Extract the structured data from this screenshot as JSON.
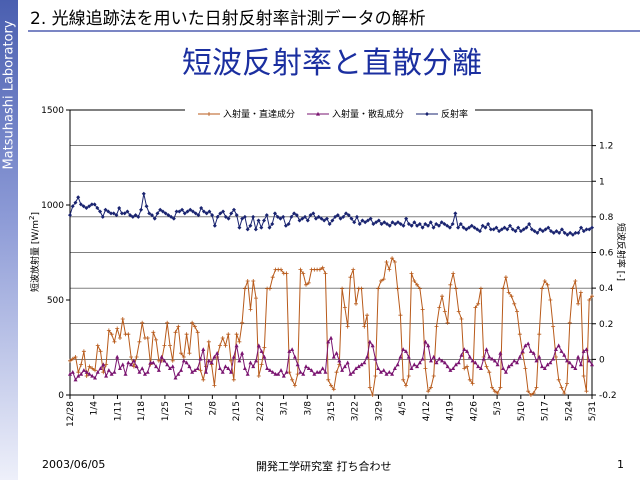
{
  "slide": {
    "sidebar_text": "Matsuhashi Laboratory",
    "heading": "2. 光線追跡法を用いた日射反射率計測データの解析",
    "title": "短波反射率と直散分離",
    "footer_date": "2003/06/05",
    "footer_org": "開発工学研究室 打ち合わせ",
    "page_number": "1"
  },
  "chart_data": {
    "type": "line",
    "y_left_label": "短波放射量 [W/m",
    "y_left_label_sup": "2",
    "y_left_label_end": "]",
    "y_right_label": "短波反射率 [-]",
    "y_left_range": [
      0,
      1500
    ],
    "y_left_ticks": [
      "0",
      "500",
      "1000",
      "1500"
    ],
    "y_right_range": [
      -0.2,
      1.4
    ],
    "y_right_ticks": [
      "-0.2",
      "0",
      "0.2",
      "0.4",
      "0.6",
      "0.8",
      "1",
      "1.2"
    ],
    "grid": true,
    "legend_position": "top",
    "x_range": [
      "2002-12-28",
      "2003-05-31"
    ],
    "x_ticks": [
      "12/28",
      "1/4",
      "1/11",
      "1/18",
      "1/25",
      "2/1",
      "2/8",
      "2/15",
      "2/22",
      "3/1",
      "3/8",
      "3/15",
      "3/22",
      "3/29",
      "4/5",
      "4/12",
      "4/19",
      "4/26",
      "5/3",
      "5/10",
      "5/17",
      "5/24",
      "5/31"
    ],
    "series": [
      {
        "name": "入射量・直達成分",
        "axis": "left",
        "color": "#b85a1a",
        "marker": "tick",
        "y": [
          180,
          190,
          200,
          120,
          160,
          230,
          100,
          150,
          140,
          130,
          260,
          230,
          120,
          160,
          340,
          320,
          280,
          350,
          300,
          400,
          320,
          320,
          200,
          150,
          200,
          280,
          380,
          300,
          300,
          160,
          330,
          290,
          180,
          180,
          260,
          380,
          260,
          180,
          330,
          360,
          220,
          200,
          320,
          220,
          380,
          360,
          330,
          130,
          80,
          150,
          280,
          160,
          50,
          200,
          260,
          300,
          260,
          320,
          180,
          80,
          320,
          280,
          380,
          560,
          600,
          450,
          600,
          510,
          100,
          160,
          250,
          560,
          560,
          620,
          660,
          660,
          660,
          640,
          640,
          120,
          80,
          50,
          110,
          660,
          640,
          580,
          590,
          660,
          660,
          660,
          660,
          670,
          640,
          80,
          50,
          30,
          120,
          160,
          560,
          460,
          360,
          620,
          660,
          480,
          560,
          560,
          360,
          420,
          40,
          0,
          100,
          560,
          600,
          610,
          700,
          660,
          720,
          700,
          560,
          420,
          80,
          50,
          100,
          640,
          600,
          580,
          560,
          450,
          140,
          20,
          40,
          100,
          360,
          460,
          520,
          440,
          380,
          580,
          640,
          560,
          440,
          400,
          140,
          150,
          80,
          60,
          460,
          480,
          560,
          200,
          150,
          120,
          40,
          20,
          10,
          40,
          560,
          620,
          540,
          520,
          480,
          440,
          320,
          220,
          140,
          20,
          0,
          10,
          40,
          320,
          560,
          600,
          580,
          500,
          360,
          200,
          80,
          40,
          10,
          60,
          380,
          560,
          600,
          480,
          540,
          100,
          20,
          500,
          520
        ]
      },
      {
        "name": "入射量・散乱成分",
        "axis": "left",
        "color": "#7a1470",
        "marker": "triangle",
        "y": [
          110,
          120,
          80,
          100,
          110,
          130,
          120,
          110,
          100,
          90,
          120,
          140,
          160,
          100,
          130,
          110,
          120,
          200,
          140,
          160,
          110,
          170,
          160,
          180,
          150,
          120,
          140,
          110,
          120,
          170,
          170,
          150,
          130,
          200,
          180,
          160,
          140,
          150,
          90,
          110,
          130,
          180,
          170,
          150,
          120,
          130,
          140,
          190,
          240,
          120,
          180,
          170,
          200,
          220,
          140,
          120,
          150,
          140,
          120,
          200,
          260,
          180,
          220,
          140,
          110,
          170,
          150,
          180,
          260,
          230,
          200,
          140,
          130,
          120,
          110,
          110,
          130,
          100,
          120,
          230,
          240,
          200,
          160,
          120,
          110,
          150,
          140,
          130,
          110,
          120,
          120,
          140,
          120,
          280,
          300,
          200,
          220,
          180,
          130,
          150,
          170,
          110,
          120,
          140,
          150,
          160,
          170,
          200,
          280,
          260,
          190,
          140,
          120,
          130,
          110,
          120,
          110,
          140,
          160,
          200,
          240,
          230,
          200,
          140,
          160,
          150,
          170,
          190,
          280,
          260,
          180,
          200,
          170,
          190,
          180,
          170,
          150,
          130,
          140,
          160,
          170,
          210,
          240,
          230,
          200,
          180,
          170,
          150,
          140,
          190,
          240,
          200,
          190,
          180,
          160,
          220,
          140,
          120,
          150,
          160,
          180,
          170,
          200,
          230,
          260,
          270,
          230,
          220,
          180,
          200,
          150,
          140,
          160,
          170,
          190,
          240,
          260,
          230,
          210,
          180,
          170,
          150,
          140,
          200,
          160,
          230,
          240,
          180,
          160
        ]
      },
      {
        "name": "反射率",
        "axis": "right",
        "color": "#1a2470",
        "marker": "diamond",
        "y": [
          0.81,
          0.86,
          0.88,
          0.91,
          0.87,
          0.86,
          0.85,
          0.86,
          0.87,
          0.87,
          0.85,
          0.83,
          0.8,
          0.84,
          0.83,
          0.82,
          0.82,
          0.81,
          0.85,
          0.82,
          0.82,
          0.83,
          0.81,
          0.8,
          0.81,
          0.8,
          0.84,
          0.93,
          0.86,
          0.82,
          0.81,
          0.79,
          0.82,
          0.84,
          0.83,
          0.82,
          0.81,
          0.8,
          0.79,
          0.83,
          0.83,
          0.84,
          0.82,
          0.83,
          0.84,
          0.83,
          0.82,
          0.81,
          0.85,
          0.83,
          0.82,
          0.83,
          0.81,
          0.75,
          0.8,
          0.82,
          0.83,
          0.8,
          0.79,
          0.82,
          0.84,
          0.81,
          0.74,
          0.79,
          0.8,
          0.73,
          0.75,
          0.8,
          0.73,
          0.78,
          0.74,
          0.78,
          0.81,
          0.74,
          0.76,
          0.82,
          0.8,
          0.79,
          0.8,
          0.75,
          0.76,
          0.8,
          0.82,
          0.81,
          0.78,
          0.79,
          0.8,
          0.78,
          0.81,
          0.82,
          0.79,
          0.8,
          0.79,
          0.78,
          0.79,
          0.76,
          0.78,
          0.8,
          0.81,
          0.79,
          0.8,
          0.82,
          0.81,
          0.79,
          0.77,
          0.8,
          0.76,
          0.78,
          0.77,
          0.78,
          0.79,
          0.76,
          0.77,
          0.78,
          0.76,
          0.77,
          0.76,
          0.75,
          0.77,
          0.76,
          0.77,
          0.76,
          0.75,
          0.79,
          0.76,
          0.75,
          0.77,
          0.75,
          0.76,
          0.74,
          0.76,
          0.75,
          0.77,
          0.74,
          0.76,
          0.75,
          0.77,
          0.76,
          0.75,
          0.74,
          0.76,
          0.82,
          0.74,
          0.76,
          0.74,
          0.73,
          0.74,
          0.75,
          0.74,
          0.73,
          0.72,
          0.75,
          0.74,
          0.76,
          0.73,
          0.73,
          0.74,
          0.72,
          0.73,
          0.74,
          0.73,
          0.75,
          0.73,
          0.72,
          0.74,
          0.72,
          0.73,
          0.74,
          0.76,
          0.73,
          0.72,
          0.71,
          0.73,
          0.72,
          0.73,
          0.74,
          0.72,
          0.71,
          0.72,
          0.71,
          0.73,
          0.71,
          0.7,
          0.71,
          0.7,
          0.71,
          0.71,
          0.74,
          0.72,
          0.73,
          0.73,
          0.74
        ]
      }
    ]
  }
}
